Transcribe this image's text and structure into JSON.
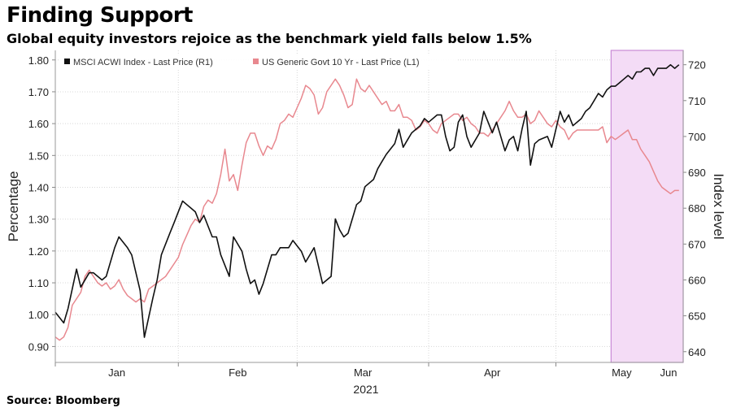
{
  "header": {
    "title": "Finding Support",
    "subtitle": "Global equity investors rejoice as the benchmark yield falls below 1.5%"
  },
  "footer": {
    "source": "Source: Bloomberg"
  },
  "colors": {
    "acwi": "#111111",
    "yield": "#e8888f",
    "highlight": "#f4dcf6",
    "highlight_border": "#c98ad6",
    "grid": "#d8d8d8"
  },
  "chart_data": {
    "type": "line",
    "title": "Finding Support",
    "xlabel": "2021",
    "ylabel_left": "Percentage",
    "ylabel_right": "Index level",
    "x_ticks": [
      "Jan",
      "Feb",
      "Mar",
      "Apr",
      "May",
      "Jun"
    ],
    "left_axis": {
      "ylim": [
        0.85,
        1.83
      ],
      "ticks": [
        "0.90",
        "1.00",
        "1.10",
        "1.20",
        "1.30",
        "1.40",
        "1.50",
        "1.60",
        "1.70",
        "1.80"
      ]
    },
    "right_axis": {
      "ylim": [
        637,
        724
      ],
      "ticks": [
        "640",
        "650",
        "660",
        "670",
        "680",
        "690",
        "700",
        "710",
        "720"
      ]
    },
    "x_range_days": [
      0,
      148
    ],
    "highlight_range_days": [
      131,
      148
    ],
    "legend": [
      {
        "label": "MSCI ACWI Index - Last Price (R1)",
        "color": "#111111"
      },
      {
        "label": "US Generic Govt 10 Yr - Last Price (L1)",
        "color": "#e8888f"
      }
    ],
    "series": [
      {
        "name": "MSCI ACWI Index - Last Price (R1)",
        "axis": "right",
        "x": [
          0,
          2,
          3,
          5,
          6,
          8,
          9,
          11,
          12,
          14,
          15,
          17,
          18,
          20,
          21,
          23,
          24,
          25,
          27,
          28,
          29,
          30,
          31,
          33,
          34,
          35,
          37,
          38,
          39,
          41,
          42,
          44,
          45,
          46,
          47,
          48,
          49,
          51,
          52,
          53,
          54,
          55,
          56,
          58,
          59,
          61,
          62,
          63,
          65,
          66,
          67,
          68,
          69,
          71,
          72,
          73,
          75,
          76,
          77,
          78,
          80,
          81,
          82,
          83,
          84,
          86,
          87,
          88,
          90,
          91,
          92,
          93,
          94,
          95,
          96,
          97,
          98,
          100,
          101,
          102,
          103,
          104,
          106,
          107,
          108,
          109,
          110,
          111,
          112,
          113,
          114,
          116,
          117,
          118,
          119,
          120,
          121,
          122,
          124,
          125,
          126,
          127,
          128,
          129,
          130,
          131,
          132,
          133,
          134,
          135,
          136,
          137,
          138,
          139,
          140,
          141,
          142,
          143,
          144,
          145,
          146,
          147
        ],
        "values": [
          651,
          648,
          652,
          663,
          658,
          662,
          662,
          660,
          661,
          669,
          672,
          669,
          667,
          657,
          644,
          655,
          660,
          667,
          673,
          676,
          679,
          682,
          681,
          679,
          676,
          678,
          672,
          672,
          667,
          661,
          672,
          668,
          663,
          659,
          660,
          656,
          659,
          667,
          667,
          669,
          669,
          669,
          671,
          668,
          665,
          669,
          664,
          659,
          661,
          677,
          674,
          672,
          673,
          681,
          682,
          686,
          688,
          691,
          693,
          695,
          698,
          702,
          697,
          699,
          701,
          703,
          705,
          704,
          706,
          706,
          700,
          696,
          697,
          704,
          706,
          700,
          697,
          701,
          707,
          704,
          701,
          704,
          696,
          699,
          700,
          696,
          702,
          707,
          692,
          698,
          699,
          700,
          697,
          702,
          707,
          704,
          706,
          703,
          705,
          707,
          708,
          710,
          712,
          711,
          713,
          714,
          714,
          715,
          716,
          717,
          716,
          718,
          718,
          719,
          719,
          717,
          719,
          719,
          719,
          720,
          719,
          720
        ]
      },
      {
        "name": "US Generic Govt 10 Yr - Last Price (L1)",
        "axis": "left",
        "x": [
          0,
          1,
          2,
          3,
          4,
          5,
          6,
          7,
          8,
          9,
          10,
          11,
          12,
          13,
          14,
          15,
          16,
          17,
          18,
          19,
          20,
          21,
          22,
          23,
          24,
          25,
          26,
          27,
          28,
          29,
          30,
          31,
          32,
          33,
          34,
          35,
          36,
          37,
          38,
          39,
          40,
          41,
          42,
          43,
          44,
          45,
          46,
          47,
          48,
          49,
          50,
          51,
          52,
          53,
          54,
          55,
          56,
          57,
          58,
          59,
          60,
          61,
          62,
          63,
          64,
          65,
          66,
          67,
          68,
          69,
          70,
          71,
          72,
          73,
          74,
          75,
          76,
          77,
          78,
          79,
          80,
          81,
          82,
          83,
          84,
          85,
          86,
          87,
          88,
          89,
          90,
          91,
          92,
          93,
          94,
          95,
          96,
          97,
          98,
          99,
          100,
          101,
          102,
          103,
          104,
          105,
          106,
          107,
          108,
          109,
          110,
          111,
          112,
          113,
          114,
          115,
          116,
          117,
          118,
          119,
          120,
          121,
          122,
          123,
          124,
          125,
          126,
          127,
          128,
          129,
          130,
          131,
          132,
          133,
          134,
          135,
          136,
          137,
          138,
          139,
          140,
          141,
          142,
          143,
          144,
          145,
          146,
          147
        ],
        "values": [
          0.93,
          0.92,
          0.93,
          0.96,
          1.03,
          1.05,
          1.07,
          1.12,
          1.14,
          1.12,
          1.1,
          1.09,
          1.1,
          1.08,
          1.09,
          1.11,
          1.08,
          1.06,
          1.05,
          1.04,
          1.05,
          1.04,
          1.08,
          1.09,
          1.1,
          1.11,
          1.12,
          1.14,
          1.16,
          1.18,
          1.22,
          1.25,
          1.28,
          1.3,
          1.29,
          1.34,
          1.36,
          1.35,
          1.38,
          1.44,
          1.52,
          1.42,
          1.44,
          1.39,
          1.47,
          1.54,
          1.57,
          1.57,
          1.53,
          1.5,
          1.53,
          1.52,
          1.55,
          1.6,
          1.61,
          1.63,
          1.62,
          1.65,
          1.68,
          1.72,
          1.71,
          1.69,
          1.63,
          1.65,
          1.7,
          1.72,
          1.74,
          1.72,
          1.69,
          1.65,
          1.66,
          1.74,
          1.71,
          1.7,
          1.72,
          1.7,
          1.68,
          1.66,
          1.67,
          1.64,
          1.64,
          1.66,
          1.62,
          1.62,
          1.61,
          1.58,
          1.59,
          1.61,
          1.6,
          1.58,
          1.57,
          1.6,
          1.61,
          1.62,
          1.63,
          1.63,
          1.61,
          1.62,
          1.6,
          1.59,
          1.57,
          1.57,
          1.56,
          1.58,
          1.6,
          1.62,
          1.64,
          1.67,
          1.64,
          1.62,
          1.62,
          1.63,
          1.6,
          1.61,
          1.64,
          1.62,
          1.6,
          1.59,
          1.61,
          1.59,
          1.58,
          1.55,
          1.57,
          1.58,
          1.58,
          1.58,
          1.58,
          1.58,
          1.58,
          1.59,
          1.54,
          1.56,
          1.55,
          1.56,
          1.57,
          1.58,
          1.55,
          1.55,
          1.52,
          1.5,
          1.48,
          1.45,
          1.42,
          1.4,
          1.39,
          1.38,
          1.39,
          1.39
        ]
      }
    ]
  }
}
